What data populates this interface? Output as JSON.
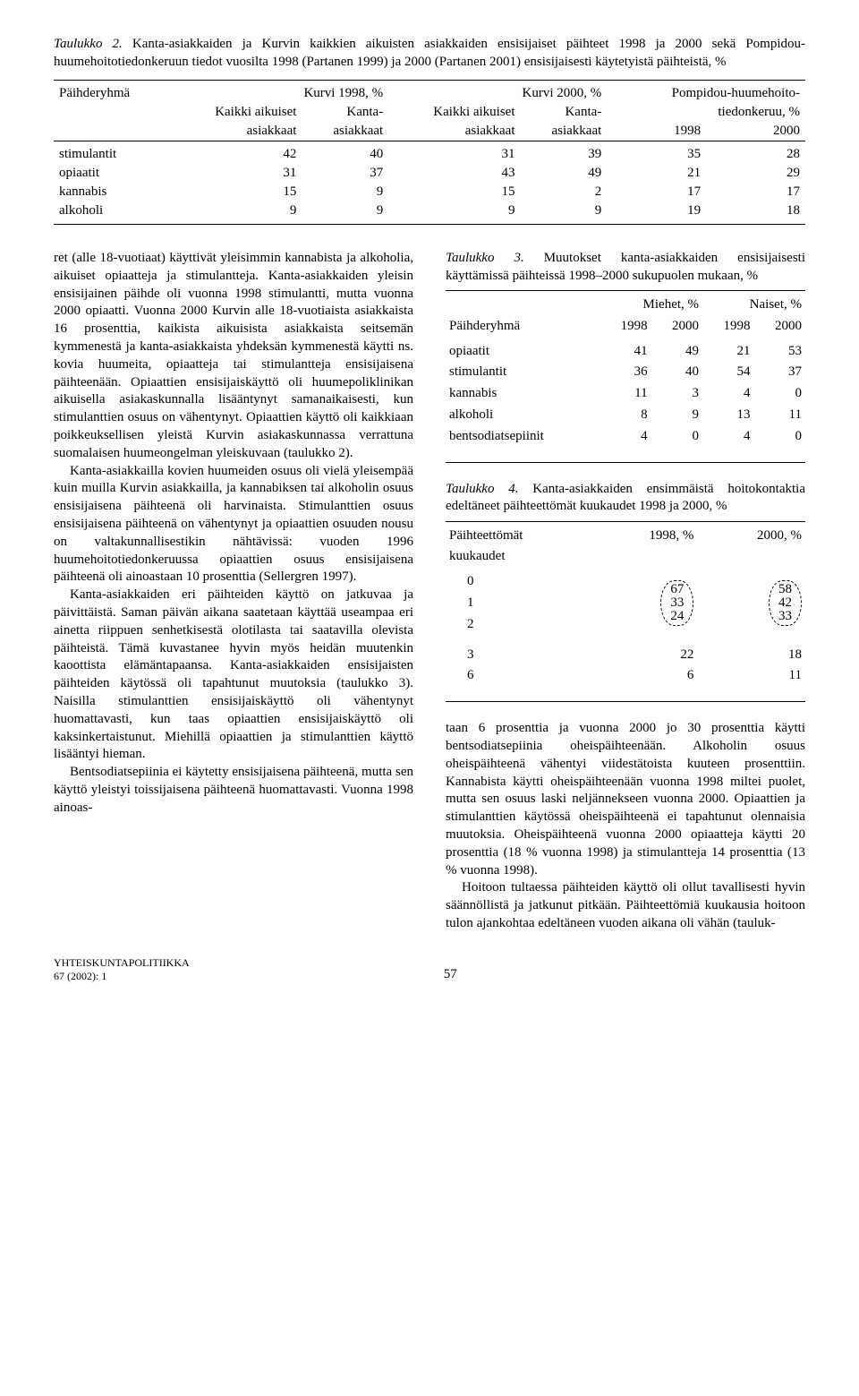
{
  "table2": {
    "caption_label": "Taulukko 2.",
    "caption_text": "Kanta-asiakkaiden ja Kurvin kaikkien aikuisten asiakkaiden ensisijaiset päihteet 1998 ja 2000 sekä Pompidou-huumehoitotiedonkeruun tiedot vuosilta 1998 (Partanen 1999) ja 2000 (Partanen 2001) ensisijaisesti käytetyistä päihteistä, %",
    "h_paihderyhma": "Päihderyhmä",
    "h_kurvi98": "Kurvi 1998, %",
    "h_kurvi00": "Kurvi 2000, %",
    "h_pompidou": "Pompidou-huumehoito-",
    "h_pompidou2": "tiedonkeruu, %",
    "h_kaikki": "Kaikki aikuiset",
    "h_kanta": "Kanta-",
    "h_asiakkaat": "asiakkaat",
    "h_1998": "1998",
    "h_2000": "2000",
    "rows": [
      {
        "label": "stimulantit",
        "v": [
          "42",
          "40",
          "31",
          "39",
          "35",
          "28"
        ]
      },
      {
        "label": "opiaatit",
        "v": [
          "31",
          "37",
          "43",
          "49",
          "21",
          "29"
        ]
      },
      {
        "label": "kannabis",
        "v": [
          "15",
          "9",
          "15",
          "2",
          "17",
          "17"
        ]
      },
      {
        "label": "alkoholi",
        "v": [
          "9",
          "9",
          "9",
          "9",
          "19",
          "18"
        ]
      }
    ]
  },
  "leftcol": {
    "p1": "ret (alle 18-vuotiaat) käyttivät yleisimmin kannabista ja alkoholia, aikuiset opiaatteja ja stimulantteja. Kanta-asiakkaiden yleisin ensisijainen päihde oli vuonna 1998 stimulantti, mutta vuonna 2000 opiaatti. Vuonna 2000 Kurvin alle 18-vuotiaista asiakkaista 16 prosenttia,  kaikista aikuisista asiakkaista seitsemän kymmenestä ja kanta-asiakkaista yhdeksän kymmenestä käytti ns. kovia huumeita, opiaatteja tai stimulantteja ensisijaisena päihteenään. Opiaattien ensisijaiskäyttö oli huumepoliklinikan aikuisella asiakaskunnalla lisääntynyt samanaikaisesti, kun stimulanttien osuus on vähentynyt. Opiaattien käyttö oli kaikkiaan poikkeuksellisen yleistä Kurvin asiakaskunnassa verrattuna suomalaisen huumeongelman yleiskuvaan (taulukko 2).",
    "p2": "Kanta-asiakkailla kovien huumeiden osuus oli vielä yleisempää kuin muilla Kurvin asiakkailla, ja kannabiksen tai alkoholin osuus ensisijaisena päihteenä oli harvinaista. Stimulanttien osuus ensisijaisena päihteenä on vähentynyt ja opiaattien osuuden nousu on valtakunnallisestikin nähtävissä: vuoden 1996 huumehoitotiedonkeruussa opiaattien osuus ensisijaisena päihteenä oli ainoastaan 10 prosenttia (Sellergren 1997).",
    "p3": "Kanta-asiakkaiden eri päihteiden käyttö on jatkuvaa ja päivittäistä. Saman päivän aikana saatetaan käyttää useampaa eri ainetta riippuen senhetkisestä olotilasta tai saatavilla olevista päihteistä. Tämä kuvastanee hyvin myös heidän muutenkin kaoottista elämäntapaansa. Kanta-asiakkaiden ensisijaisten päihteiden käytössä oli tapahtunut muutoksia (taulukko 3). Naisilla stimulanttien ensisijaiskäyttö oli vähentynyt huomattavasti, kun taas opiaattien ensisijaiskäyttö oli kaksinkertaistunut. Miehillä opiaattien ja stimulanttien käyttö lisääntyi hieman.",
    "p4": "Bentsodiatsepiinia ei käytetty ensisijaisena päihteenä, mutta sen käyttö yleistyi toissijaisena päihteenä huomattavasti. Vuonna 1998 ainoas-"
  },
  "table3": {
    "caption_label": "Taulukko 3.",
    "caption_text": "Muutokset kanta-asiakkaiden ensisijaisesti käyttämissä päihteissä 1998–2000 sukupuolen mukaan, %",
    "h_paihderyhma": "Päihderyhmä",
    "h_miehet": "Miehet, %",
    "h_naiset": "Naiset, %",
    "h_1998": "1998",
    "h_2000": "2000",
    "rows": [
      {
        "label": "opiaatit",
        "v": [
          "41",
          "49",
          "21",
          "53"
        ]
      },
      {
        "label": "stimulantit",
        "v": [
          "36",
          "40",
          "54",
          "37"
        ]
      },
      {
        "label": "kannabis",
        "v": [
          "11",
          "3",
          "4",
          "0"
        ]
      },
      {
        "label": "alkoholi",
        "v": [
          "8",
          "9",
          "13",
          "11"
        ]
      },
      {
        "label": "bentsodiatsepiinit",
        "v": [
          "4",
          "0",
          "4",
          "0"
        ]
      }
    ]
  },
  "table4": {
    "caption_label": "Taulukko 4.",
    "caption_text": "Kanta-asiakkaiden ensimmäistä hoitokontaktia edeltäneet päihteettömät kuukaudet 1998 ja 2000, %",
    "h_paihteettomat": "Päihteettömät",
    "h_kuukaudet": "kuukaudet",
    "h_1998": "1998, %",
    "h_2000": "2000, %",
    "rows_oval": [
      {
        "label": "0",
        "a": "67",
        "b": "58"
      },
      {
        "label": "1",
        "a": "33",
        "b": "42"
      },
      {
        "label": "2",
        "a": "24",
        "b": "33"
      }
    ],
    "rows_plain": [
      {
        "label": "3",
        "a": "22",
        "b": "18"
      },
      {
        "label": "6",
        "a": "6",
        "b": "11"
      }
    ]
  },
  "rightcol": {
    "p1": "taan 6 prosenttia ja vuonna 2000 jo 30 prosenttia käytti bentsodiatsepiinia oheispäihteenään. Alkoholin osuus oheispäihteenä vähentyi viidestätoista kuuteen prosenttiin. Kannabista käytti oheispäihteenään vuonna 1998 miltei puolet, mutta sen osuus laski neljännekseen vuonna 2000. Opiaattien ja stimulanttien käytössä oheispäihteenä ei tapahtunut olennaisia muutoksia. Oheispäihteenä vuonna 2000 opiaatteja käytti 20 prosenttia (18 % vuonna 1998) ja stimulantteja 14 prosenttia (13 % vuonna 1998).",
    "p2": "Hoitoon tultaessa päihteiden käyttö oli ollut tavallisesti hyvin säännöllistä ja jatkunut pitkään. Päihteettömiä kuukausia hoitoon tulon ajankohtaa edeltäneen vuoden aikana oli vähän (tauluk-"
  },
  "footer": {
    "line1": "YHTEISKUNTAPOLITIIKKA",
    "line2": "67 (2002): 1",
    "page": "57"
  }
}
